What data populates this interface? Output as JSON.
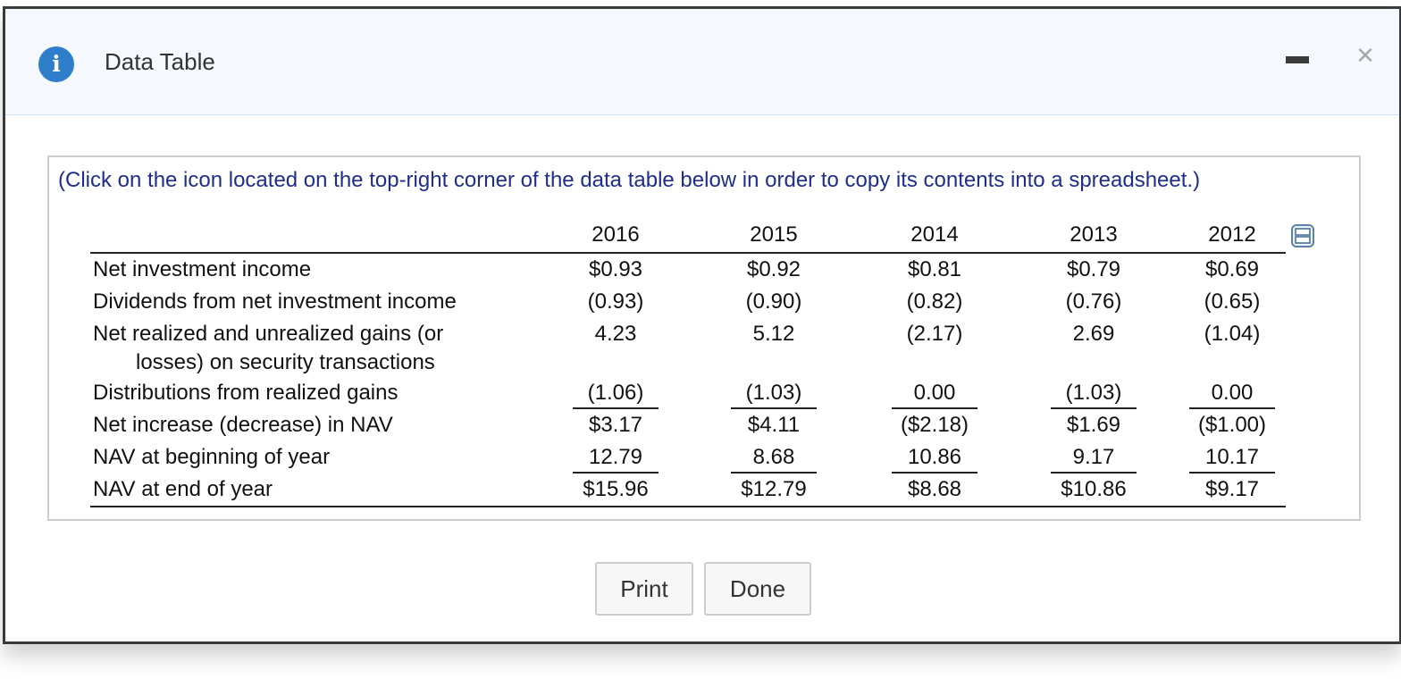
{
  "dialog": {
    "title": "Data Table",
    "info_icon": "i",
    "close_icon": "✕"
  },
  "instruction": "(Click on the icon located on the top-right corner of the data table below in order to copy its contents into a spreadsheet.)",
  "table": {
    "years": [
      "2016",
      "2015",
      "2014",
      "2013",
      "2012"
    ],
    "rows": [
      {
        "label": "Net investment income",
        "values": [
          "$0.93",
          "$0.92",
          "$0.81",
          "$0.79",
          "$0.69"
        ]
      },
      {
        "label": "Dividends from net investment income",
        "values": [
          "(0.93)",
          "(0.90)",
          "(0.82)",
          "(0.76)",
          "(0.65)"
        ]
      },
      {
        "label": "Net realized and unrealized gains (or",
        "label_cont": "losses) on security transactions",
        "values": [
          "4.23",
          "5.12",
          "(2.17)",
          "2.69",
          "(1.04)"
        ]
      },
      {
        "label": "Distributions from realized gains",
        "values": [
          "(1.06)",
          "(1.03)",
          "0.00",
          "(1.03)",
          "0.00"
        ]
      },
      {
        "label": "Net increase (decrease) in NAV",
        "values": [
          "$3.17",
          "$4.11",
          "($2.18)",
          "$1.69",
          "($1.00)"
        ]
      },
      {
        "label": "NAV at beginning of year",
        "values": [
          "12.79",
          "8.68",
          "10.86",
          "9.17",
          "10.17"
        ]
      },
      {
        "label": "NAV at end of year",
        "values": [
          "$15.96",
          "$12.79",
          "$8.68",
          "$10.86",
          "$9.17"
        ]
      }
    ]
  },
  "buttons": {
    "print": "Print",
    "done": "Done"
  },
  "colors": {
    "accent": "#2f7ecb",
    "instruction_text": "#1e2e8c",
    "titlebar_bg": "#f5f8fc"
  }
}
